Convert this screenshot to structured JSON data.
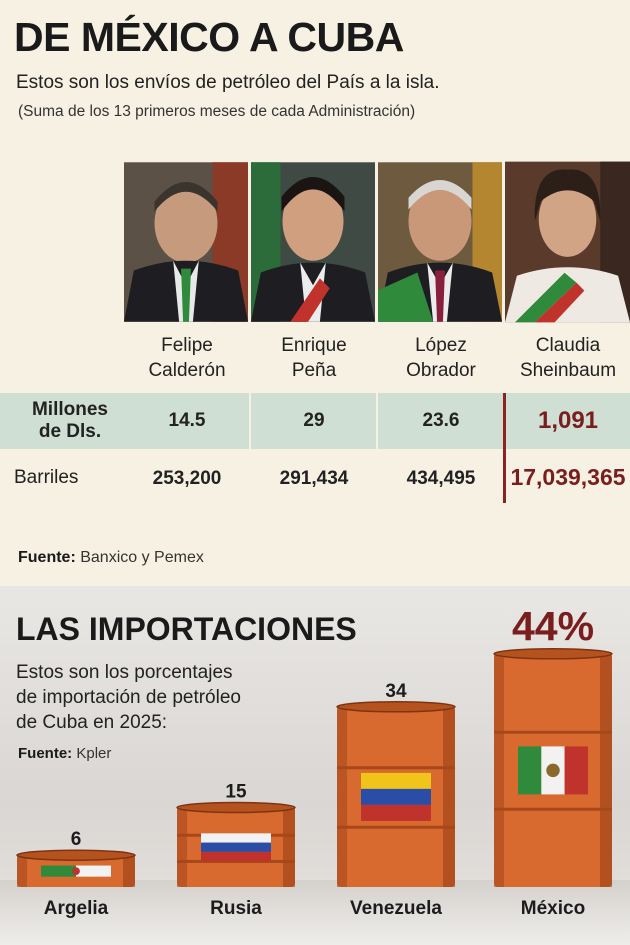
{
  "header": {
    "title": "DE MÉXICO A CUBA",
    "subtitle": "Estos son los envíos de petróleo del País a la isla.",
    "note": "(Suma de los 13 primeros meses de cada Administración)"
  },
  "presidents": [
    {
      "name_line1": "Felipe",
      "name_line2": "Calderón"
    },
    {
      "name_line1": "Enrique",
      "name_line2": "Peña"
    },
    {
      "name_line1": "López",
      "name_line2": "Obrador"
    },
    {
      "name_line1": "Claudia",
      "name_line2": "Sheinbaum"
    }
  ],
  "table": {
    "row1_label_line1": "Millones",
    "row1_label_line2": "de Dls.",
    "row2_label": "Barriles",
    "millones": [
      "14.5",
      "29",
      "23.6",
      "1,091"
    ],
    "barriles": [
      "253,200",
      "291,434",
      "434,495",
      "17,039,365"
    ]
  },
  "source1": {
    "label": "Fuente:",
    "text": "Banxico y Pemex"
  },
  "imports": {
    "title": "LAS IMPORTACIONES",
    "desc_line1": "Estos son los porcentajes",
    "desc_line2": "de importación de petróleo",
    "desc_line3": "de Cuba en 2025:",
    "source_label": "Fuente:",
    "source_text": "Kpler"
  },
  "colors": {
    "accent": "#7a1d1d",
    "row_highlight": "#cfdfd3",
    "barrel": "#d8692f"
  },
  "chart_data": {
    "type": "bar",
    "categories": [
      "Argelia",
      "Rusia",
      "Venezuela",
      "México"
    ],
    "values": [
      6,
      15,
      34,
      44
    ],
    "value_labels": [
      "6",
      "15",
      "34",
      "44%"
    ],
    "title": "LAS IMPORTACIONES",
    "ylabel": "",
    "xlabel": ""
  }
}
